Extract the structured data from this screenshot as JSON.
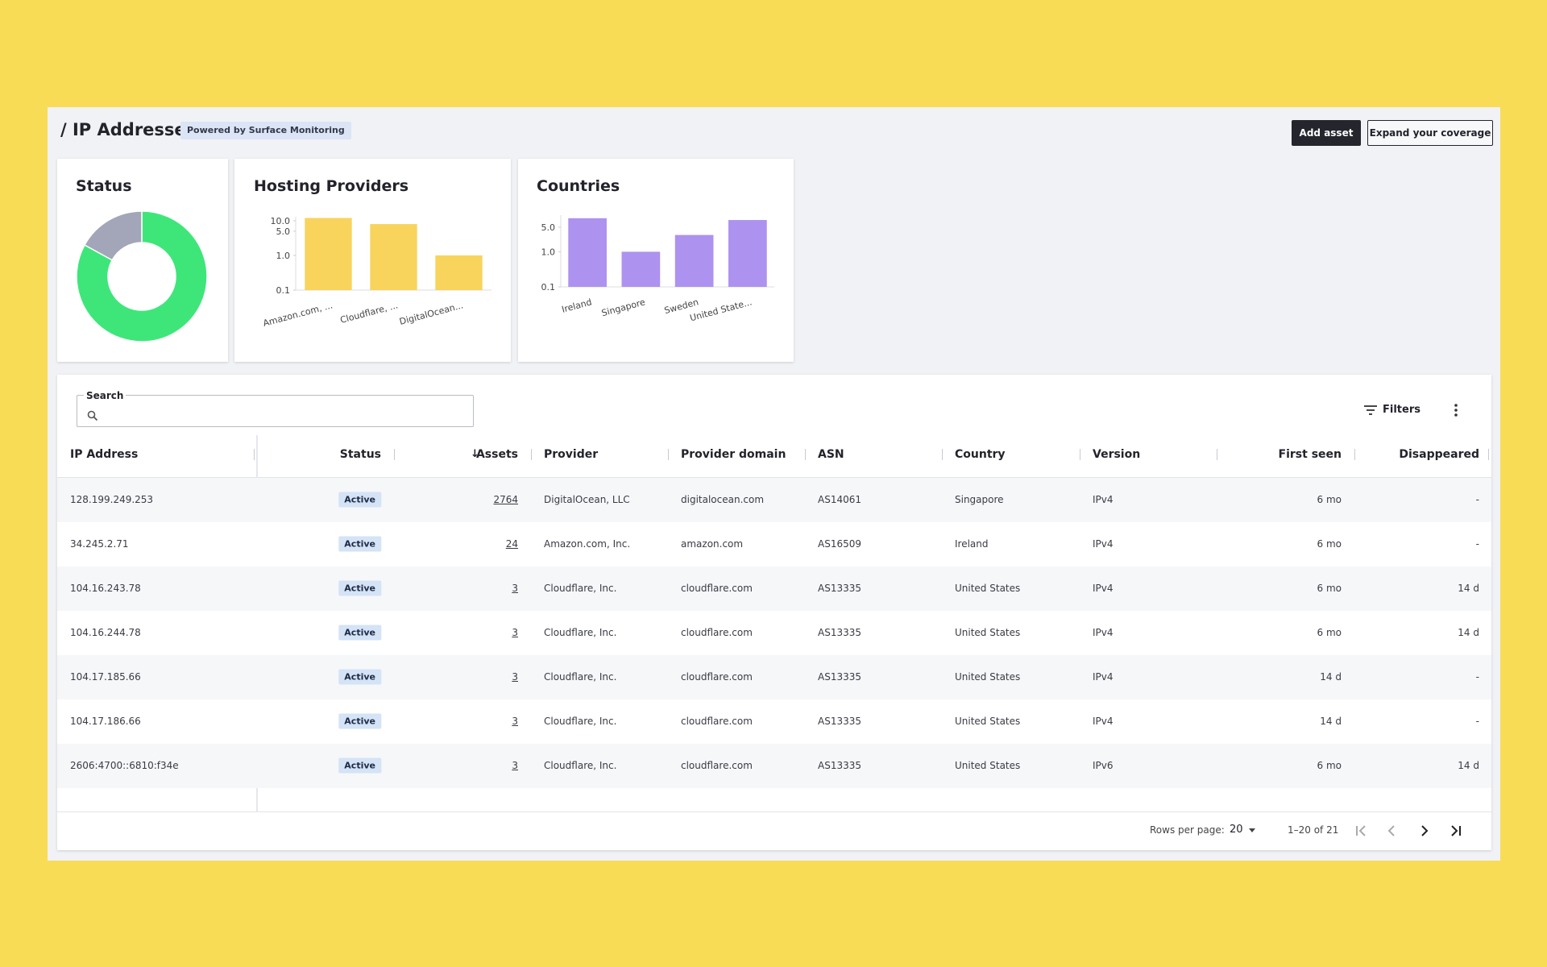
{
  "header": {
    "title": "/ IP Addresses",
    "badge": "Powered by Surface Monitoring",
    "primary_button": "Add asset",
    "secondary_button": "Expand your coverage"
  },
  "charts": [
    {
      "type": "donut",
      "title": "Status",
      "values": [
        83,
        17
      ],
      "colors": [
        "#3ee67a",
        "#a3a6b8"
      ]
    },
    {
      "type": "bar",
      "title": "Hosting Providers",
      "categories": [
        "Amazon.com, ...",
        "Cloudflare, ...",
        "DigitalOcean..."
      ],
      "values": [
        12,
        8,
        1
      ],
      "color": "#f8d45c",
      "log_scale": true,
      "ylim": [
        0.1,
        13
      ],
      "yticks": [
        0.1,
        {
          "value": 1,
          "label": "1.0"
        },
        {
          "value": 5,
          "label": "5.0"
        },
        {
          "value": 10,
          "label": "10.0"
        }
      ]
    },
    {
      "type": "bar",
      "title": "Countries",
      "categories": [
        "Ireland",
        "Singapore",
        "Sweden",
        "United State..."
      ],
      "values": [
        9,
        1,
        3,
        8
      ],
      "color": "#ad92f0",
      "log_scale": true,
      "ylim": [
        0.1,
        11
      ],
      "yticks": [
        0.1,
        {
          "value": 1,
          "label": "1.0"
        },
        {
          "value": 5,
          "label": "5.0"
        }
      ]
    }
  ],
  "search": {
    "label": "Search"
  },
  "toolbar": {
    "filters": "Filters"
  },
  "table": {
    "columns": [
      "IP Address",
      "Status",
      "Assets",
      "Provider",
      "Provider domain",
      "ASN",
      "Country",
      "Version",
      "First seen",
      "Disappeared"
    ],
    "rows": [
      [
        "128.199.249.253",
        "Active",
        "2764",
        "DigitalOcean, LLC",
        "digitalocean.com",
        "AS14061",
        "Singapore",
        "IPv4",
        "6 mo",
        "-"
      ],
      [
        "34.245.2.71",
        "Active",
        "24",
        "Amazon.com, Inc.",
        "amazon.com",
        "AS16509",
        "Ireland",
        "IPv4",
        "6 mo",
        "-"
      ],
      [
        "104.16.243.78",
        "Active",
        "3",
        "Cloudflare, Inc.",
        "cloudflare.com",
        "AS13335",
        "United States",
        "IPv4",
        "6 mo",
        "14 d"
      ],
      [
        "104.16.244.78",
        "Active",
        "3",
        "Cloudflare, Inc.",
        "cloudflare.com",
        "AS13335",
        "United States",
        "IPv4",
        "6 mo",
        "14 d"
      ],
      [
        "104.17.185.66",
        "Active",
        "3",
        "Cloudflare, Inc.",
        "cloudflare.com",
        "AS13335",
        "United States",
        "IPv4",
        "14 d",
        "-"
      ],
      [
        "104.17.186.66",
        "Active",
        "3",
        "Cloudflare, Inc.",
        "cloudflare.com",
        "AS13335",
        "United States",
        "IPv4",
        "14 d",
        "-"
      ],
      [
        "2606:4700::6810:f34e",
        "Active",
        "3",
        "Cloudflare, Inc.",
        "cloudflare.com",
        "AS13335",
        "United States",
        "IPv6",
        "6 mo",
        "14 d"
      ]
    ]
  },
  "pagination": {
    "rows_per_page_label": "Rows per page:",
    "rows_per_page": "20",
    "range": "1–20 of 21"
  }
}
